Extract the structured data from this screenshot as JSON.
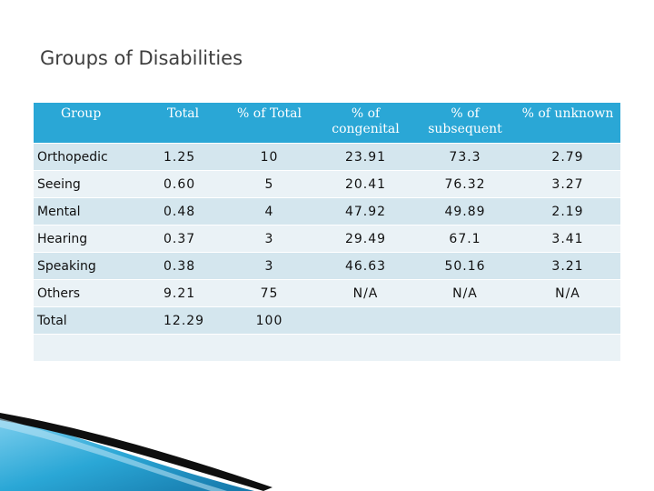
{
  "slide": {
    "title": "Groups of Disabilities"
  },
  "table": {
    "headers": [
      "Group",
      "Total",
      "% of Total",
      "% of congenital",
      "% of subsequent",
      "% of unknown"
    ],
    "rows": [
      [
        "Orthopedic",
        "1.25",
        "10",
        "23.91",
        "73.3",
        "2.79"
      ],
      [
        "Seeing",
        "0.60",
        "5",
        "20.41",
        "76.32",
        "3.27"
      ],
      [
        "Mental",
        "0.48",
        "4",
        "47.92",
        "49.89",
        "2.19"
      ],
      [
        "Hearing",
        "0.37",
        "3",
        "29.49",
        "67.1",
        "3.41"
      ],
      [
        "Speaking",
        "0.38",
        "3",
        "46.63",
        "50.16",
        "3.21"
      ],
      [
        "Others",
        "9.21",
        "75",
        "N/A",
        "N/A",
        "N/A"
      ],
      [
        "Total",
        "12.29",
        "100",
        "",
        "",
        ""
      ],
      [
        "",
        "",
        "",
        "",
        "",
        ""
      ]
    ]
  },
  "colors": {
    "header_bg": "#2aa7d6",
    "row_odd": "#d4e6ee",
    "row_even": "#eaf2f6",
    "accent_wave": "#1f8fc4"
  }
}
